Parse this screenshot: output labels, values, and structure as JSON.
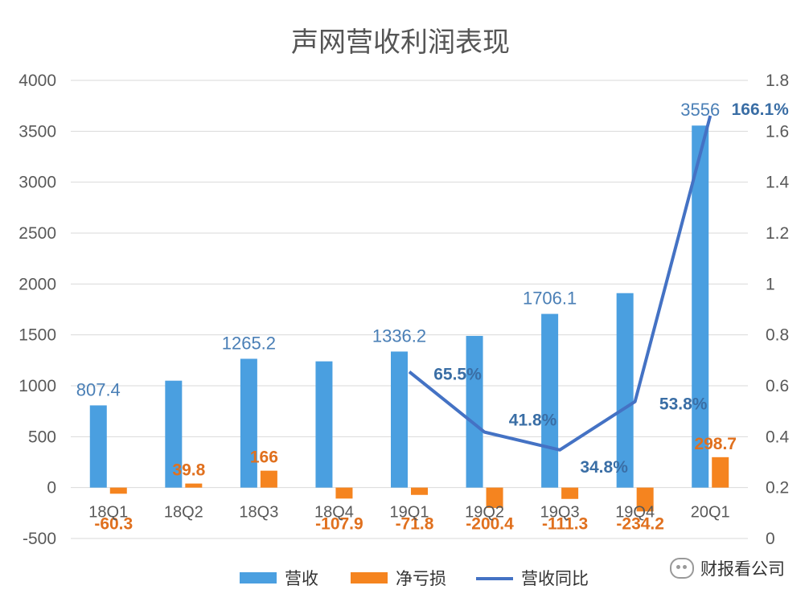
{
  "chart_data": {
    "type": "bar",
    "title": "声网营收利润表现",
    "categories": [
      "18Q1",
      "18Q2",
      "18Q3",
      "18Q4",
      "19Q1",
      "19Q2",
      "19Q3",
      "19Q4",
      "20Q1"
    ],
    "series": [
      {
        "name": "营收",
        "type": "bar",
        "axis": "left",
        "color": "#4a9fe0",
        "values": [
          807.4,
          1050,
          1265.2,
          1240,
          1336.2,
          1490,
          1706.1,
          1910,
          3556
        ],
        "labels": [
          "807.4",
          "",
          "1265.2",
          "",
          "1336.2",
          "",
          "1706.1",
          "",
          "3556"
        ]
      },
      {
        "name": "净亏损",
        "type": "bar",
        "axis": "left",
        "color": "#f5841f",
        "values": [
          -60.3,
          39.8,
          166,
          -107.9,
          -71.8,
          -200.4,
          -111.3,
          -234.2,
          298.7
        ],
        "labels": [
          "-60.3",
          "39.8",
          "166",
          "-107.9",
          "-71.8",
          "-200.4",
          "-111.3",
          "-234.2",
          "298.7"
        ]
      },
      {
        "name": "营收同比",
        "type": "line",
        "axis": "right",
        "color": "#4472c4",
        "values": [
          null,
          null,
          null,
          null,
          0.655,
          0.418,
          0.348,
          0.538,
          1.661
        ],
        "labels": [
          "",
          "",
          "",
          "",
          "65.5%",
          "41.8%",
          "34.8%",
          "53.8%",
          "166.1%"
        ]
      }
    ],
    "y_left": {
      "min": -500,
      "max": 4000,
      "ticks": [
        "-500",
        "0",
        "500",
        "1000",
        "1500",
        "2000",
        "2500",
        "3000",
        "3500",
        "4000"
      ]
    },
    "y_right": {
      "min": 0,
      "max": 1.8,
      "ticks": [
        "0",
        "0.2",
        "0.4",
        "0.6",
        "0.8",
        "1",
        "1.2",
        "1.4",
        "1.6",
        "1.8"
      ]
    },
    "grid": true,
    "legend": "bottom"
  },
  "watermark": {
    "text": "财报看公司"
  }
}
